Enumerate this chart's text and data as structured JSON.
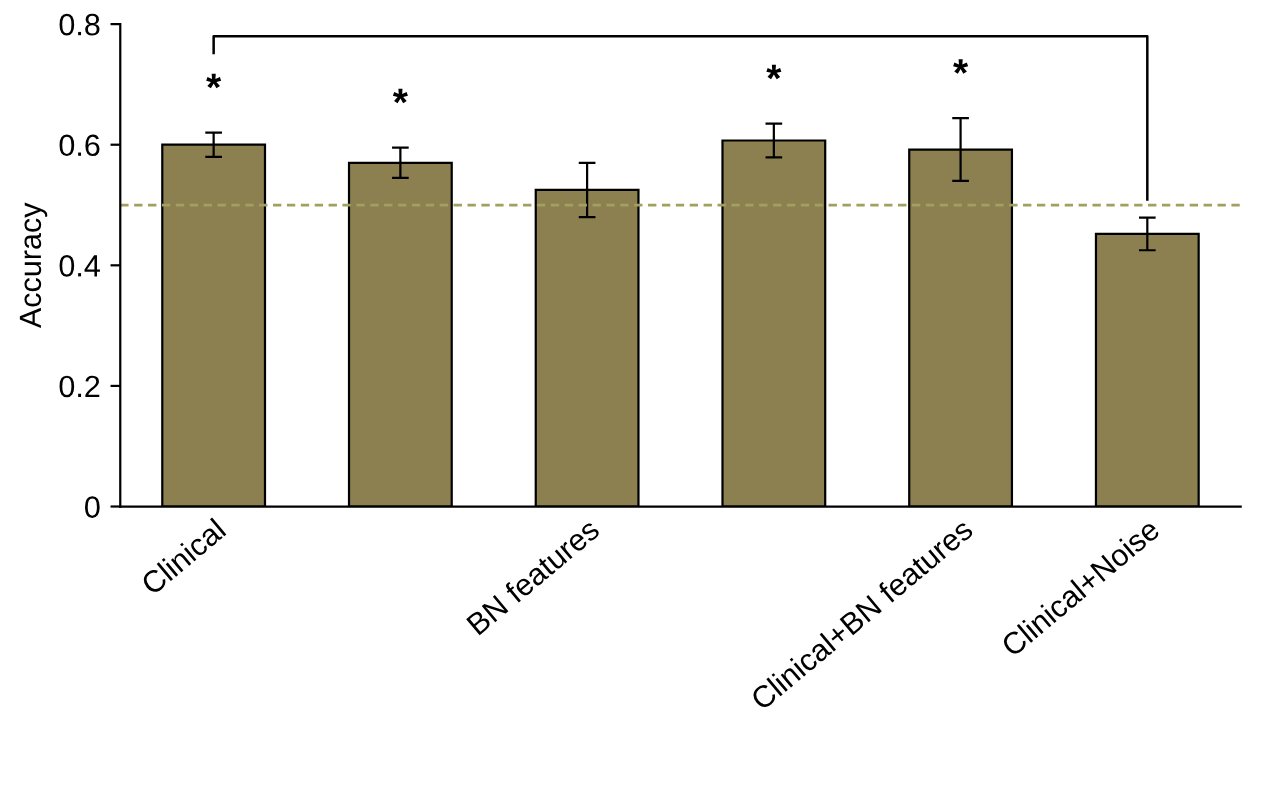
{
  "chart_data": {
    "type": "bar",
    "ylabel": "Accuracy",
    "categories": [
      "Clinical",
      null,
      "BN features",
      null,
      "Clinical+BN features",
      "Clinical+Noise"
    ],
    "values": [
      0.6,
      0.57,
      0.525,
      0.607,
      0.592,
      0.452
    ],
    "errors": [
      0.02,
      0.025,
      0.045,
      0.028,
      0.052,
      0.027
    ],
    "color": "#8c8050",
    "ylim": [
      0,
      0.8
    ],
    "yticks": [
      0,
      0.2,
      0.4,
      0.6,
      0.8
    ],
    "grid": false,
    "ref_lines": [
      {
        "axis": "y",
        "value": 0.5,
        "color": "#a0a060",
        "line_style": "dashed"
      }
    ],
    "value_labels": [
      "*",
      "*",
      null,
      "*",
      "*",
      null
    ]
  }
}
